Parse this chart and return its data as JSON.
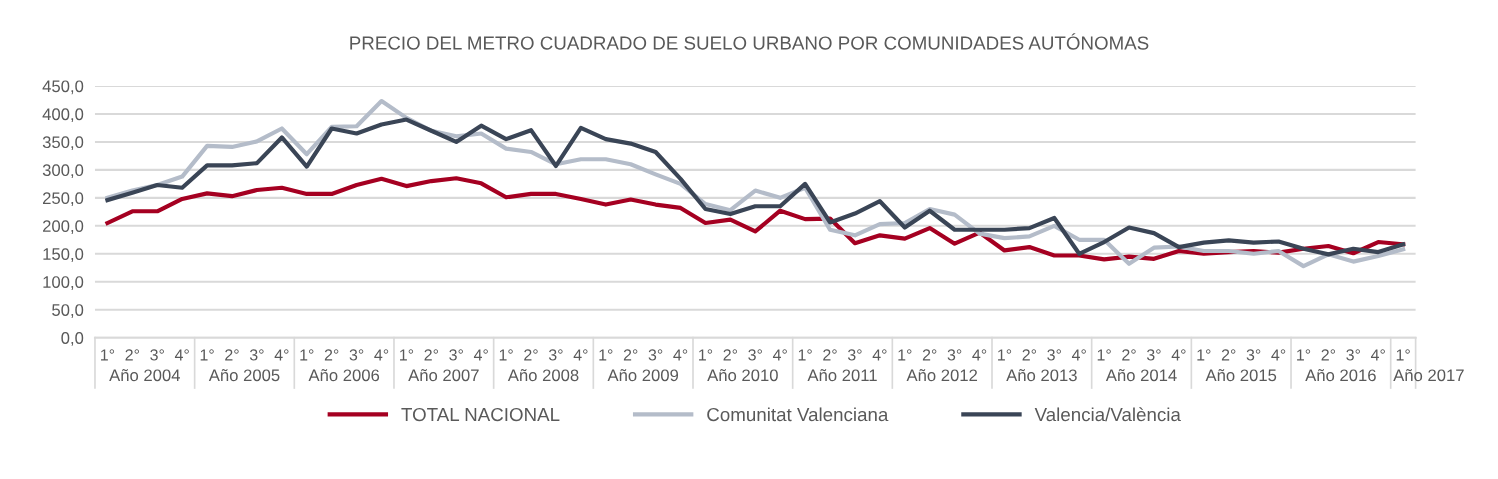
{
  "chart_data": {
    "type": "line",
    "title": "PRECIO DEL METRO CUADRADO DE SUELO URBANO POR COMUNIDADES AUTÓNOMAS",
    "categories": [
      "1°",
      "2°",
      "3°",
      "4°",
      "1°",
      "2°",
      "3°",
      "4°",
      "1°",
      "2°",
      "3°",
      "4°",
      "1°",
      "2°",
      "3°",
      "4°",
      "1°",
      "2°",
      "3°",
      "4°",
      "1°",
      "2°",
      "3°",
      "4°",
      "1°",
      "2°",
      "3°",
      "4°",
      "1°",
      "2°",
      "3°",
      "4°",
      "1°",
      "2°",
      "3°",
      "4°",
      "1°",
      "2°",
      "3°",
      "4°",
      "1°",
      "2°",
      "3°",
      "4°",
      "1°",
      "2°",
      "3°",
      "4°",
      "1°",
      "2°",
      "3°",
      "4°",
      "1°"
    ],
    "annotations": [
      "Año 2004",
      "Año 2005",
      "Año 2006",
      "Año 2007",
      "Año 2008",
      "Año 2009",
      "Año 2010",
      "Año 2011",
      "Año 2012",
      "Año 2013",
      "Año 2014",
      "Año 2015",
      "Año 2016",
      "Año 2017"
    ],
    "series": [
      {
        "name": "TOTAL NACIONAL",
        "color": "#a50021",
        "values": [
          205,
          226,
          226,
          248,
          258,
          253,
          264,
          268,
          257,
          257,
          273,
          284,
          271,
          280,
          285,
          276,
          251,
          257,
          257,
          248,
          238,
          247,
          238,
          232,
          205,
          211,
          190,
          227,
          212,
          213,
          169,
          183,
          177,
          196,
          168,
          188,
          156,
          162,
          147,
          147,
          140,
          145,
          141,
          155,
          150,
          153,
          155,
          152,
          159,
          164,
          151,
          171,
          167
        ]
      },
      {
        "name": "Comunitat Valenciana",
        "color": "#b4bcc9",
        "values": [
          250,
          263,
          273,
          288,
          343,
          341,
          351,
          374,
          328,
          377,
          378,
          423,
          393,
          370,
          360,
          365,
          338,
          332,
          310,
          319,
          319,
          310,
          292,
          275,
          239,
          228,
          263,
          250,
          268,
          193,
          183,
          203,
          205,
          230,
          220,
          186,
          178,
          181,
          200,
          175,
          175,
          132,
          161,
          163,
          155,
          155,
          150,
          155,
          128,
          149,
          136,
          146,
          158
        ]
      },
      {
        "name": "Valencia/València",
        "color": "#3a4556",
        "values": [
          246,
          259,
          273,
          268,
          308,
          308,
          312,
          358,
          306,
          374,
          365,
          381,
          390,
          370,
          350,
          379,
          355,
          371,
          307,
          375,
          355,
          347,
          332,
          284,
          230,
          221,
          235,
          235,
          275,
          206,
          222,
          244,
          197,
          227,
          193,
          193,
          193,
          196,
          214,
          150,
          171,
          197,
          187,
          162,
          170,
          174,
          170,
          172,
          159,
          149,
          159,
          153,
          167
        ]
      }
    ],
    "ylim": [
      0,
      450
    ],
    "yticks": [
      {
        "value": 0,
        "label": "0,0"
      },
      {
        "value": 50,
        "label": "50,0"
      },
      {
        "value": 100,
        "label": "100,0"
      },
      {
        "value": 150,
        "label": "150,0"
      },
      {
        "value": 200,
        "label": "200,0"
      },
      {
        "value": 250,
        "label": "250,0"
      },
      {
        "value": 300,
        "label": "300,0"
      },
      {
        "value": 350,
        "label": "350,0"
      },
      {
        "value": 400,
        "label": "400,0"
      },
      {
        "value": 450,
        "label": "450,0"
      }
    ],
    "grid": "y",
    "legend": "bottom",
    "marker": "none",
    "line_style": "solid"
  }
}
